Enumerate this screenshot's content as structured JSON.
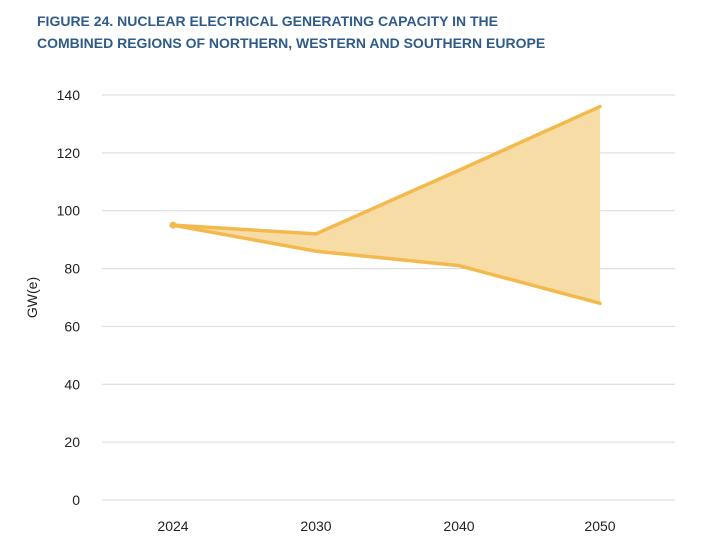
{
  "title_lines": [
    "FIGURE 24. NUCLEAR ELECTRICAL GENERATING CAPACITY IN THE",
    "COMBINED REGIONS OF NORTHERN, WESTERN AND SOUTHERN EUROPE"
  ],
  "colors": {
    "title": "#2f5b8a",
    "band_fill": "#f8dca6",
    "band_line": "#f3b94d",
    "grid": "#d9d9d9"
  },
  "chart_data": {
    "type": "area",
    "title": "FIGURE 24. NUCLEAR ELECTRICAL GENERATING CAPACITY IN THE COMBINED REGIONS OF NORTHERN, WESTERN AND SOUTHERN EUROPE",
    "xlabel": "",
    "ylabel": "GW(e)",
    "categories": [
      "2024",
      "2030",
      "2040",
      "2050"
    ],
    "series": [
      {
        "values": [
          95,
          92,
          114,
          136
        ]
      },
      {
        "values": [
          95,
          86,
          81,
          68
        ]
      }
    ],
    "ylim": [
      0,
      140
    ],
    "yticks": [
      0,
      20,
      40,
      60,
      80,
      100,
      120,
      140
    ],
    "grid": true,
    "legend": "none"
  }
}
